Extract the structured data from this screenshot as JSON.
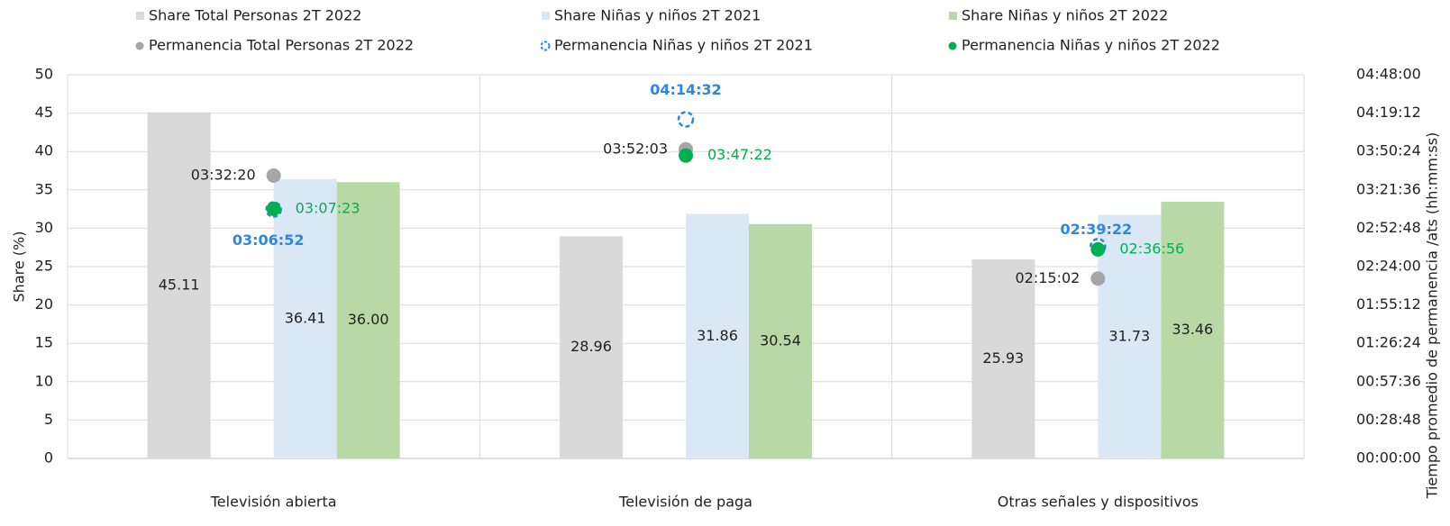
{
  "chart_data": {
    "type": "bar",
    "categories": [
      "Televisión abierta",
      "Televisión de paga",
      "Otras señales y dispositivos"
    ],
    "ylabel": "Share (%)",
    "y2label": "Tiempo promedio de permanencia /ats (hh:mm:ss)",
    "ylim": [
      0,
      50
    ],
    "yticks": [
      0,
      5,
      10,
      15,
      20,
      25,
      30,
      35,
      40,
      45,
      50
    ],
    "y2lim": [
      0,
      17280
    ],
    "y2ticks": [
      {
        "value": 0,
        "label": "00:00:00"
      },
      {
        "value": 1728,
        "label": "00:28:48"
      },
      {
        "value": 3456,
        "label": "00:57:36"
      },
      {
        "value": 5184,
        "label": "01:26:24"
      },
      {
        "value": 6912,
        "label": "01:55:12"
      },
      {
        "value": 8640,
        "label": "02:24:00"
      },
      {
        "value": 10368,
        "label": "02:52:48"
      },
      {
        "value": 12096,
        "label": "03:21:36"
      },
      {
        "value": 13824,
        "label": "03:50:24"
      },
      {
        "value": 15552,
        "label": "04:19:12"
      },
      {
        "value": 17280,
        "label": "04:48:00"
      }
    ],
    "grid": true,
    "legend": "top",
    "series": [
      {
        "name": "Share Total Personas 2T 2022",
        "type": "bar",
        "color": "#d9d9d9",
        "values": [
          45.11,
          28.96,
          25.93
        ],
        "value_labels": [
          "45.11",
          "28.96",
          "25.93"
        ]
      },
      {
        "name": "Share Niñas y niños 2T 2021",
        "type": "bar",
        "color": "#dae8f6",
        "values": [
          36.41,
          31.86,
          31.73
        ],
        "value_labels": [
          "36.41",
          "31.86",
          "31.73"
        ]
      },
      {
        "name": "Share Niñas y niños 2T 2022",
        "type": "bar",
        "color": "#b8d9a6",
        "values": [
          36.0,
          30.54,
          33.46
        ],
        "value_labels": [
          "36.00",
          "30.54",
          "33.46"
        ]
      },
      {
        "name": "Permanencia Total Personas 2T 2022",
        "type": "scatter",
        "axis": "y2",
        "color": "#a6a6a6",
        "values": [
          12740,
          13923,
          8102
        ],
        "value_labels": [
          "03:32:20",
          "03:52:03",
          "02:15:02"
        ]
      },
      {
        "name": "Permanencia Niñas y niños 2T 2021",
        "type": "scatter",
        "axis": "y2",
        "color": "#2e86de",
        "values": [
          11212,
          15272,
          9562
        ],
        "value_labels": [
          "03:06:52",
          "04:14:32",
          "02:39:22"
        ]
      },
      {
        "name": "Permanencia Niñas y niños 2T 2022",
        "type": "scatter",
        "axis": "y2",
        "color": "#00b050",
        "values": [
          11243,
          13642,
          9416
        ],
        "value_labels": [
          "03:07:23",
          "03:47:22",
          "02:36:56"
        ]
      }
    ]
  }
}
